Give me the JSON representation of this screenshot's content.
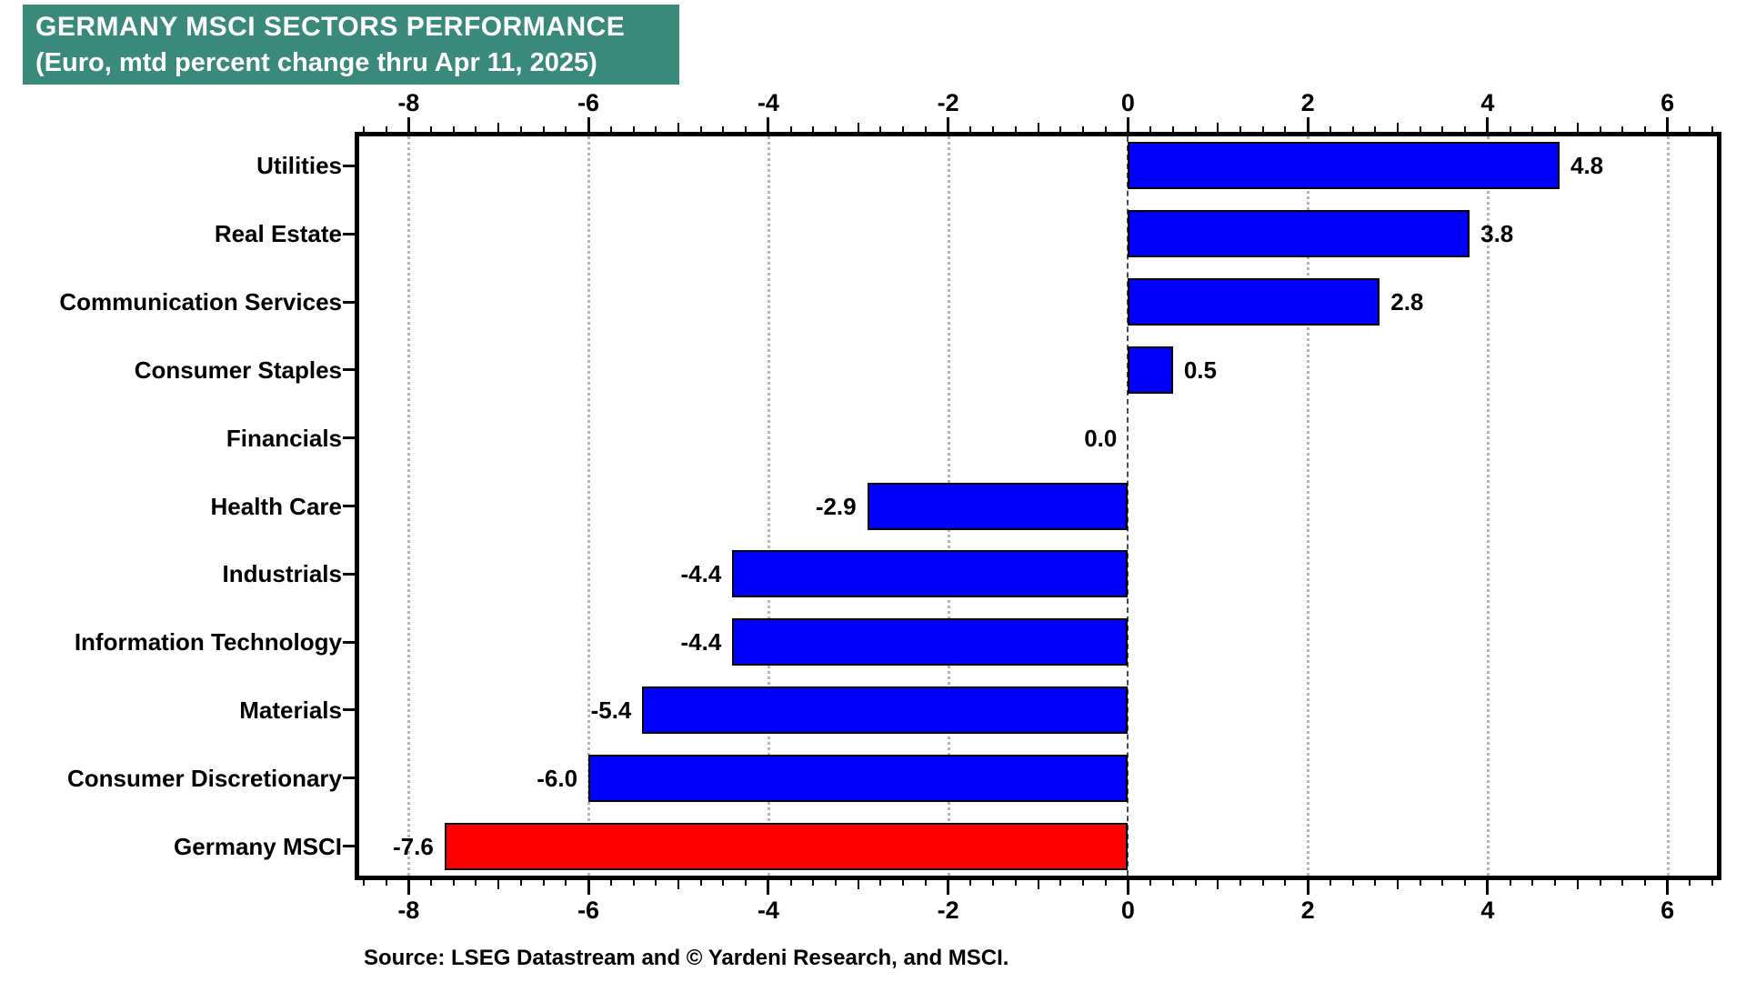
{
  "title": {
    "line1": "GERMANY MSCI SECTORS PERFORMANCE",
    "line2": "(Euro, mtd percent change thru Apr 11, 2025)"
  },
  "source": {
    "text": "Source: LSEG Datastream and © Yardeni Research, and MSCI."
  },
  "colors": {
    "title_bg": "#3A8A7C",
    "title_text": "#FFFFFF",
    "bar_default": "#0000FF",
    "bar_highlight": "#FF0000",
    "grid": "#B5B5B5",
    "zero_line": "#4A4A4A",
    "axis": "#000000"
  },
  "chart_data": {
    "type": "bar",
    "orientation": "horizontal",
    "title": "GERMANY MSCI SECTORS PERFORMANCE (Euro, mtd percent change thru Apr 11, 2025)",
    "categories": [
      "Utilities",
      "Real Estate",
      "Communication Services",
      "Consumer Staples",
      "Financials",
      "Health Care",
      "Industrials",
      "Information Technology",
      "Materials",
      "Consumer Discretionary",
      "Germany MSCI"
    ],
    "values": [
      4.8,
      3.8,
      2.8,
      0.5,
      0.0,
      -2.9,
      -4.4,
      -4.4,
      -5.4,
      -6.0,
      -7.6
    ],
    "value_labels": [
      "4.8",
      "3.8",
      "2.8",
      "0.5",
      "0.0",
      "-2.9",
      "-4.4",
      "-4.4",
      "-5.4",
      "-6.0",
      "-7.6"
    ],
    "bar_colors": [
      "#0000FF",
      "#0000FF",
      "#0000FF",
      "#0000FF",
      "#0000FF",
      "#0000FF",
      "#0000FF",
      "#0000FF",
      "#0000FF",
      "#0000FF",
      "#FF0000"
    ],
    "xlabel": "",
    "ylabel": "",
    "xlim": [
      -8.6,
      6.6
    ],
    "x_major_ticks": [
      -8,
      -6,
      -4,
      -2,
      0,
      2,
      4,
      6
    ],
    "x_minor_step": 0.25,
    "grid": "vertical dotted gridlines at major ticks, top and bottom axis tick labels",
    "zero_line_style": "dashed",
    "legend": "none"
  }
}
